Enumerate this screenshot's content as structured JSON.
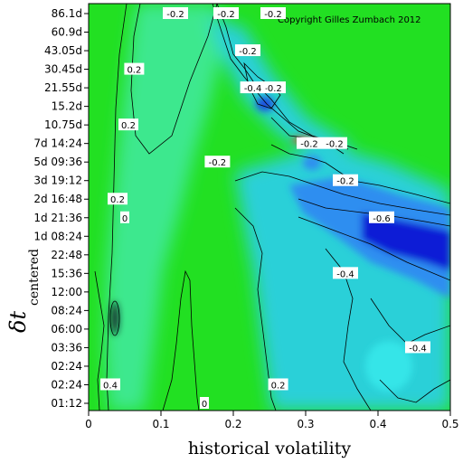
{
  "chart_data": {
    "type": "heatmap",
    "title": "",
    "copyright": "Copyright Gilles Zumbach 2012",
    "xlabel": "historical volatility",
    "ylabel_main": "δt",
    "ylabel_sub": "centered",
    "xlim": [
      0,
      0.5
    ],
    "x_ticks": [
      "0",
      "0.1",
      "0.2",
      "0.3",
      "0.4",
      "0.5"
    ],
    "y_ticks": [
      "01:12",
      "02:24",
      "02:24",
      "03:36",
      "06:00",
      "08:24",
      "12:00",
      "15:36",
      "22:48",
      "1d 08:24",
      "1d 21:36",
      "2d 16:48",
      "3d 19:12",
      "5d 09:36",
      "7d 14:24",
      "10.75d",
      "15.2d",
      "21.55d",
      "30.45d",
      "43.05d",
      "60.9d",
      "86.1d"
    ],
    "colors": {
      "zero": "#19d619",
      "mild_negative": "#3ce88e",
      "negative": "#2bd0d8",
      "strong_negative": "#2f8ef0",
      "very_negative": "#0b1fd6",
      "positive": "#e0a020",
      "background": "#22e022"
    },
    "contour_levels": [
      -0.6,
      -0.4,
      -0.2,
      0,
      0.2
    ],
    "contour_labels": [
      {
        "text": "-0.2",
        "x": 0.12,
        "y": "86.1d"
      },
      {
        "text": "-0.2",
        "x": 0.19,
        "y": "86.1d"
      },
      {
        "text": "-0.2",
        "x": 0.255,
        "y": "86.1d"
      },
      {
        "text": "0.2",
        "x": 0.063,
        "y": "30.45d"
      },
      {
        "text": "-0.2",
        "x": 0.22,
        "y": "43.05d"
      },
      {
        "text": "-0.2",
        "x": 0.255,
        "y": "21.55d"
      },
      {
        "text": "-0.4",
        "x": 0.227,
        "y": "21.55d"
      },
      {
        "text": "0.2",
        "x": 0.055,
        "y": "10.75d"
      },
      {
        "text": "-0.2",
        "x": 0.178,
        "y": "5d 09:36"
      },
      {
        "text": "0.2",
        "x": 0.04,
        "y": "2d 16:48"
      },
      {
        "text": "0",
        "x": 0.05,
        "y": "1d 21:36"
      },
      {
        "text": "-0.2",
        "x": 0.305,
        "y": "7d 14:24"
      },
      {
        "text": "-0.2",
        "x": 0.34,
        "y": "7d 14:24"
      },
      {
        "text": "-0.2",
        "x": 0.355,
        "y": "3d 19:12"
      },
      {
        "text": "-0.6",
        "x": 0.405,
        "y": "1d 21:36"
      },
      {
        "text": "-0.4",
        "x": 0.355,
        "y": "15:36"
      },
      {
        "text": "-0.4",
        "x": 0.455,
        "y": "03:36"
      },
      {
        "text": "0.4",
        "x": 0.03,
        "y": "02:24"
      },
      {
        "text": "0",
        "x": 0.16,
        "y": "01:12"
      },
      {
        "text": "0.2",
        "x": 0.262,
        "y": "02:24"
      }
    ]
  }
}
